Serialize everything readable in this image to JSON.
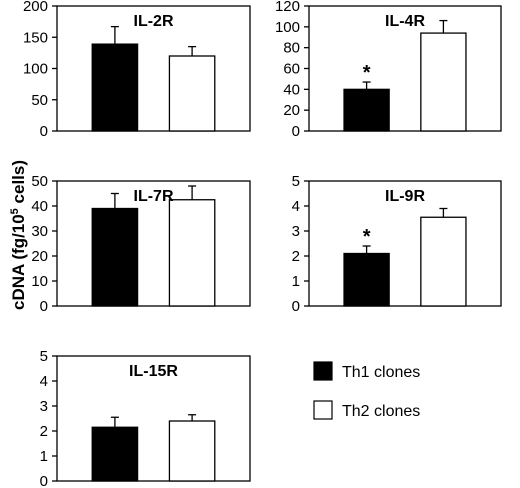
{
  "figure": {
    "ylabel": "cDNA (fg/10",
    "ylabel_sup": "5",
    "ylabel_tail": " cells)"
  },
  "legend": {
    "entries": [
      {
        "label": "Th1 clones",
        "color": "#000000"
      },
      {
        "label": "Th2 clones",
        "color": "#ffffff"
      }
    ],
    "position": "bottom-right"
  },
  "chart_data": [
    {
      "type": "bar",
      "title": "IL-2R",
      "categories": [
        "Th1 clones",
        "Th2 clones"
      ],
      "values": [
        139,
        120
      ],
      "errors": [
        28,
        15
      ],
      "significant": [
        false,
        false
      ],
      "ylim": [
        0,
        200
      ],
      "yticks": [
        "0",
        "50",
        "100",
        "150",
        "200"
      ]
    },
    {
      "type": "bar",
      "title": "IL-4R",
      "categories": [
        "Th1 clones",
        "Th2 clones"
      ],
      "values": [
        40,
        94
      ],
      "errors": [
        7,
        12
      ],
      "significant": [
        true,
        false
      ],
      "ylim": [
        0,
        120
      ],
      "yticks": [
        "0",
        "20",
        "40",
        "60",
        "80",
        "100",
        "120"
      ]
    },
    {
      "type": "bar",
      "title": "IL-7R",
      "categories": [
        "Th1 clones",
        "Th2 clones"
      ],
      "values": [
        39,
        42.5
      ],
      "errors": [
        6,
        5.5
      ],
      "significant": [
        false,
        false
      ],
      "ylim": [
        0,
        50
      ],
      "yticks": [
        "0",
        "10",
        "20",
        "30",
        "40",
        "50"
      ]
    },
    {
      "type": "bar",
      "title": "IL-9R",
      "categories": [
        "Th1 clones",
        "Th2 clones"
      ],
      "values": [
        2.1,
        3.55
      ],
      "errors": [
        0.3,
        0.35
      ],
      "significant": [
        true,
        false
      ],
      "ylim": [
        0,
        5
      ],
      "yticks": [
        "0",
        "1",
        "2",
        "3",
        "4",
        "5"
      ]
    },
    {
      "type": "bar",
      "title": "IL-15R",
      "categories": [
        "Th1 clones",
        "Th2 clones"
      ],
      "values": [
        2.15,
        2.4
      ],
      "errors": [
        0.4,
        0.25
      ],
      "significant": [
        false,
        false
      ],
      "ylim": [
        0,
        5
      ],
      "yticks": [
        "0",
        "1",
        "2",
        "3",
        "4",
        "5"
      ]
    }
  ]
}
